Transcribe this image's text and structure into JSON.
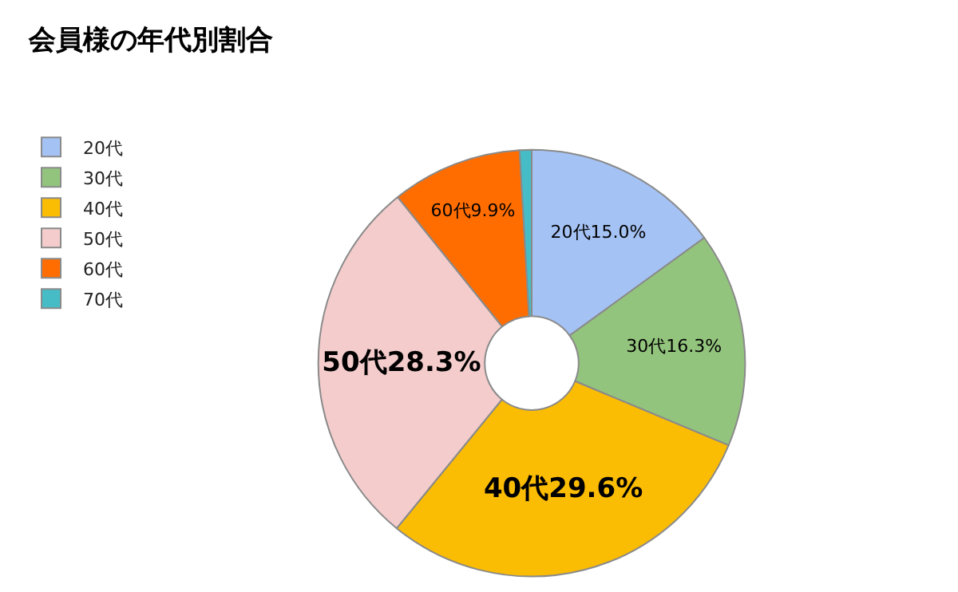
{
  "chart_data": {
    "type": "donut",
    "title": "会員様の年代別割合",
    "categories": [
      "20代",
      "30代",
      "40代",
      "50代",
      "60代",
      "70代"
    ],
    "values": [
      15.0,
      16.3,
      29.6,
      28.3,
      9.9,
      0.9
    ],
    "colors": [
      "#a4c2f4",
      "#93c47d",
      "#fbbc04",
      "#f4cccc",
      "#ff6d01",
      "#46bdc6"
    ],
    "value_labels": [
      "20代15.0%",
      "30代16.3%",
      "40代29.6%",
      "50代28.3%",
      "60代9.9%",
      null
    ],
    "legend": "top left"
  }
}
